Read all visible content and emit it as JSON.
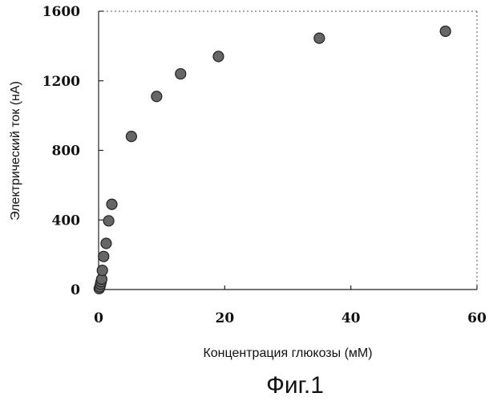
{
  "chart_data": {
    "type": "scatter",
    "title": "",
    "xlabel": "Концентрация глюкозы (мМ)",
    "ylabel": "Электрический ток (нА)",
    "xlim": [
      0,
      60
    ],
    "ylim": [
      0,
      1600
    ],
    "x_ticks": [
      "0",
      "20",
      "40",
      "60"
    ],
    "y_ticks": [
      "0",
      "400",
      "800",
      "1200",
      "1600"
    ],
    "grid": false,
    "series": [
      {
        "points": [
          {
            "x": 0.1,
            "y": 5
          },
          {
            "x": 0.2,
            "y": 15
          },
          {
            "x": 0.3,
            "y": 30
          },
          {
            "x": 0.4,
            "y": 45
          },
          {
            "x": 0.5,
            "y": 60
          },
          {
            "x": 0.6,
            "y": 110
          },
          {
            "x": 0.8,
            "y": 190
          },
          {
            "x": 1.2,
            "y": 265
          },
          {
            "x": 1.6,
            "y": 395
          },
          {
            "x": 2.1,
            "y": 490
          },
          {
            "x": 5.2,
            "y": 880
          },
          {
            "x": 9.2,
            "y": 1110
          },
          {
            "x": 13.0,
            "y": 1240
          },
          {
            "x": 19.0,
            "y": 1340
          },
          {
            "x": 35.0,
            "y": 1445
          },
          {
            "x": 55.0,
            "y": 1485
          }
        ]
      }
    ]
  },
  "caption": "Фиг.1"
}
